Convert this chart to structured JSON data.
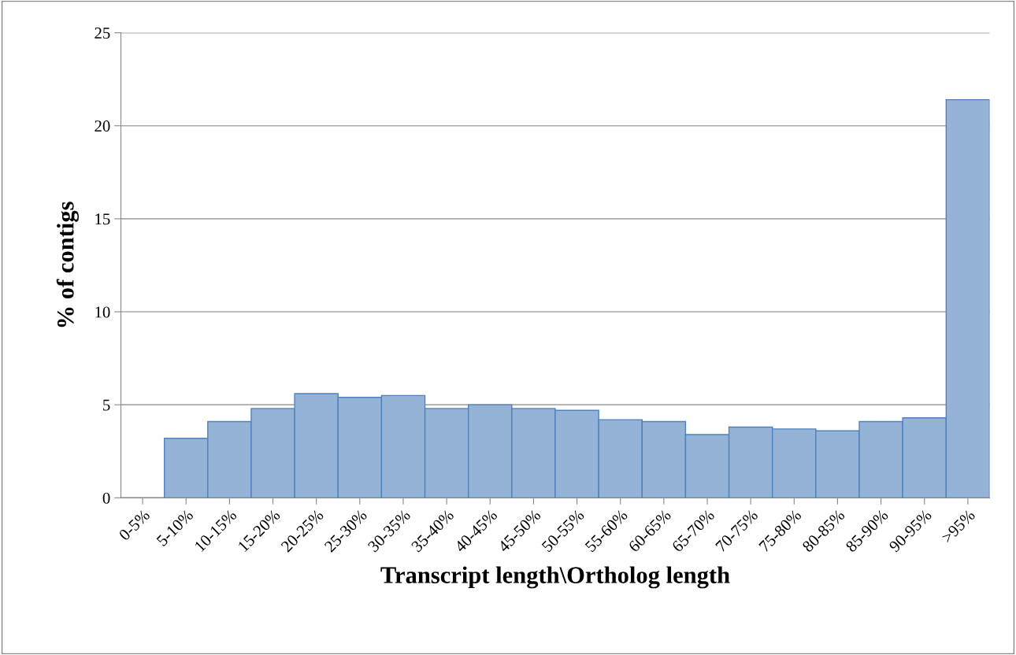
{
  "chart_data": {
    "type": "bar",
    "xlabel": "Transcript length\\Ortholog length",
    "ylabel": "% of contigs",
    "categories": [
      "0-5%",
      "5-10%",
      "10-15%",
      "15-20%",
      "20-25%",
      "25-30%",
      "30-35%",
      "35-40%",
      "40-45%",
      "45-50%",
      "50-55%",
      "55-60%",
      "60-65%",
      "65-70%",
      "70-75%",
      "75-80%",
      "80-85%",
      "85-90%",
      "90-95%",
      ">95%"
    ],
    "values": [
      0,
      3.2,
      4.1,
      4.8,
      5.6,
      5.4,
      5.5,
      4.8,
      5.0,
      4.8,
      4.7,
      4.2,
      4.1,
      3.4,
      3.8,
      3.7,
      3.6,
      4.1,
      4.3,
      21.4
    ],
    "color": "#95b3d7",
    "ylim": [
      0,
      25
    ],
    "yticks": [
      0,
      5,
      10,
      15,
      20,
      25
    ],
    "grid": "y"
  }
}
